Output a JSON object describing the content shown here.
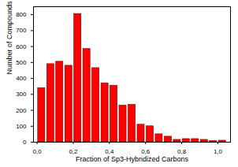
{
  "chart_data": {
    "type": "histogram",
    "xlabel": "Fraction of Sp3-Hybridized Carbons",
    "ylabel": "Number of Compounds",
    "bins": [
      0,
      0.05,
      0.1,
      0.15,
      0.2,
      0.25,
      0.3,
      0.35,
      0.4,
      0.45,
      0.5,
      0.55,
      0.6,
      0.65,
      0.7,
      0.75,
      0.8,
      0.85,
      0.9,
      0.95,
      1.0,
      1.05
    ],
    "values": [
      340,
      490,
      505,
      480,
      805,
      585,
      465,
      370,
      355,
      230,
      235,
      110,
      100,
      50,
      35,
      15,
      20,
      20,
      15,
      8,
      10
    ],
    "color": "#ff0000",
    "xlim": [
      -0.02,
      1.07
    ],
    "xticks": [
      {
        "value": 0,
        "label": "0,0"
      },
      {
        "value": 0.2,
        "label": "0,2"
      },
      {
        "value": 0.4,
        "label": "0,4"
      },
      {
        "value": 0.6,
        "label": "0,6"
      },
      {
        "value": 0.8,
        "label": "0,8"
      },
      {
        "value": 1.0,
        "label": "1,0"
      }
    ],
    "ylim": [
      0,
      850
    ],
    "yticks": [
      0,
      100,
      200,
      300,
      400,
      500,
      600,
      700,
      800
    ],
    "grid": false
  }
}
